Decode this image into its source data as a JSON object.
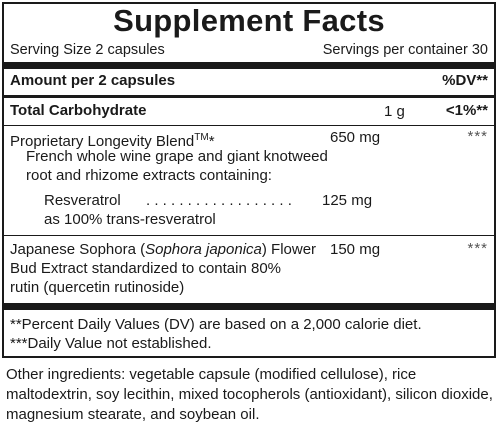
{
  "title": "Supplement Facts",
  "serving_size": "Serving Size 2 capsules",
  "servings_per_container": "Servings per container 30",
  "header": {
    "amount": "Amount per 2 capsules",
    "dv": "%DV**"
  },
  "carb": {
    "name": "Total Carbohydrate",
    "amount": "1 g",
    "dv": "<1%**"
  },
  "blend": {
    "name": "Proprietary Longevity Blend",
    "tm": "TM",
    "star": "*",
    "amount": "650 mg",
    "dv": "***",
    "desc1": "French whole wine grape and giant knotweed",
    "desc2": "root and rhizome extracts containing:",
    "resv_name": "Resveratrol",
    "resv_dots": ". . . . . . . . . . . . . . . . . .",
    "resv_amount": "125 mg",
    "resv_note": "as 100% trans-resveratrol"
  },
  "sophora": {
    "line1_a": "Japanese Sophora (",
    "line1_italic": "Sophora japonica",
    "line1_b": ") Flower",
    "amount": "150 mg",
    "dv": "***",
    "line2": "Bud Extract standardized to contain 80%",
    "line3": "rutin (quercetin rutinoside)"
  },
  "footnotes": {
    "f1": "**Percent Daily Values (DV) are based on a 2,000 calorie diet.",
    "f2": "***Daily Value not established."
  },
  "other_ingredients": "Other ingredients: vegetable capsule (modified cellulose), rice maltodextrin, soy lecithin, mixed tocopherols (antioxidant), silicon dioxide, magnesium stearate, and soybean oil."
}
